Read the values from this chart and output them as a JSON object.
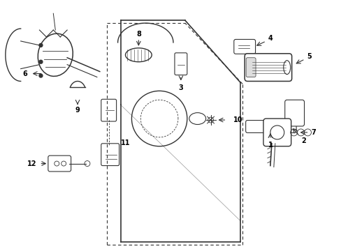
{
  "bg_color": "#ffffff",
  "line_color": "#333333",
  "label_color": "#000000",
  "fig_width": 4.89,
  "fig_height": 3.6,
  "dpi": 100
}
